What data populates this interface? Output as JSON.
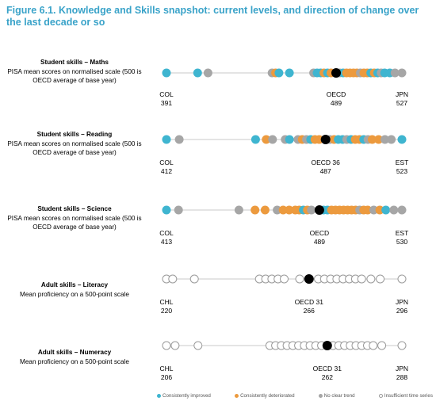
{
  "title": "Figure 6.1. Knowledge and Skills snapshot: current levels, and direction of change over the last decade or so",
  "colors": {
    "improved": "#3fb5d0",
    "deteriorated": "#ec9a3e",
    "no_clear_trend": "#a6a6a6",
    "insufficient": "#ffffff",
    "oecd": "#000000",
    "axis": "#c8c8c8"
  },
  "legend": [
    {
      "key": "improved",
      "label": "Consistently improved"
    },
    {
      "key": "deteriorated",
      "label": "Consistently deteriorated"
    },
    {
      "key": "no_clear_trend",
      "label": "No clear trend"
    },
    {
      "key": "insufficient",
      "label": "Insufficient time series"
    }
  ],
  "chart_data": [
    {
      "type": "scatter",
      "heading": "Student skills – Maths",
      "subtitle": "PISA mean scores on normalised scale (500 is OECD average of base year)",
      "xlim": [
        391,
        527
      ],
      "min_label": {
        "country": "COL",
        "value": "391"
      },
      "max_label": {
        "country": "JPN",
        "value": "527"
      },
      "oecd_label": {
        "country": "OECD",
        "value": "489"
      },
      "oecd": 489,
      "points": [
        {
          "x": 391,
          "s": "improved"
        },
        {
          "x": 409,
          "s": "improved"
        },
        {
          "x": 415,
          "s": "no_clear_trend"
        },
        {
          "x": 452,
          "s": "no_clear_trend"
        },
        {
          "x": 454,
          "s": "deteriorated"
        },
        {
          "x": 456,
          "s": "improved"
        },
        {
          "x": 462,
          "s": "improved"
        },
        {
          "x": 476,
          "s": "no_clear_trend"
        },
        {
          "x": 478,
          "s": "improved"
        },
        {
          "x": 480,
          "s": "improved"
        },
        {
          "x": 482,
          "s": "deteriorated"
        },
        {
          "x": 484,
          "s": "improved"
        },
        {
          "x": 486,
          "s": "deteriorated"
        },
        {
          "x": 491,
          "s": "no_clear_trend"
        },
        {
          "x": 493,
          "s": "improved"
        },
        {
          "x": 495,
          "s": "deteriorated"
        },
        {
          "x": 497,
          "s": "deteriorated"
        },
        {
          "x": 499,
          "s": "deteriorated"
        },
        {
          "x": 501,
          "s": "deteriorated"
        },
        {
          "x": 503,
          "s": "no_clear_trend"
        },
        {
          "x": 505,
          "s": "deteriorated"
        },
        {
          "x": 507,
          "s": "deteriorated"
        },
        {
          "x": 509,
          "s": "improved"
        },
        {
          "x": 511,
          "s": "deteriorated"
        },
        {
          "x": 513,
          "s": "improved"
        },
        {
          "x": 515,
          "s": "no_clear_trend"
        },
        {
          "x": 517,
          "s": "improved"
        },
        {
          "x": 520,
          "s": "improved"
        },
        {
          "x": 523,
          "s": "no_clear_trend"
        },
        {
          "x": 527,
          "s": "no_clear_trend"
        }
      ]
    },
    {
      "type": "scatter",
      "heading": "Student skills – Reading",
      "subtitle": "PISA mean scores on normalised scale (500 is OECD average of base year)",
      "xlim": [
        412,
        523
      ],
      "min_label": {
        "country": "COL",
        "value": "412"
      },
      "max_label": {
        "country": "EST",
        "value": "523"
      },
      "oecd_label": {
        "country": "OECD  36",
        "value": "487"
      },
      "oecd": 487,
      "points": [
        {
          "x": 412,
          "s": "improved"
        },
        {
          "x": 418,
          "s": "no_clear_trend"
        },
        {
          "x": 454,
          "s": "improved"
        },
        {
          "x": 459,
          "s": "deteriorated"
        },
        {
          "x": 462,
          "s": "no_clear_trend"
        },
        {
          "x": 468,
          "s": "no_clear_trend"
        },
        {
          "x": 470,
          "s": "improved"
        },
        {
          "x": 474,
          "s": "no_clear_trend"
        },
        {
          "x": 476,
          "s": "deteriorated"
        },
        {
          "x": 478,
          "s": "no_clear_trend"
        },
        {
          "x": 480,
          "s": "improved"
        },
        {
          "x": 482,
          "s": "deteriorated"
        },
        {
          "x": 484,
          "s": "deteriorated"
        },
        {
          "x": 489,
          "s": "no_clear_trend"
        },
        {
          "x": 491,
          "s": "deteriorated"
        },
        {
          "x": 493,
          "s": "improved"
        },
        {
          "x": 495,
          "s": "improved"
        },
        {
          "x": 497,
          "s": "no_clear_trend"
        },
        {
          "x": 499,
          "s": "improved"
        },
        {
          "x": 501,
          "s": "deteriorated"
        },
        {
          "x": 503,
          "s": "deteriorated"
        },
        {
          "x": 505,
          "s": "improved"
        },
        {
          "x": 507,
          "s": "no_clear_trend"
        },
        {
          "x": 509,
          "s": "deteriorated"
        },
        {
          "x": 512,
          "s": "deteriorated"
        },
        {
          "x": 515,
          "s": "no_clear_trend"
        },
        {
          "x": 518,
          "s": "no_clear_trend"
        },
        {
          "x": 523,
          "s": "improved"
        }
      ]
    },
    {
      "type": "scatter",
      "heading": "Student skills – Science",
      "subtitle": "PISA mean scores on normalised scale (500 is OECD average of base year)",
      "xlim": [
        413,
        530
      ],
      "min_label": {
        "country": "COL",
        "value": "413"
      },
      "max_label": {
        "country": "EST",
        "value": "530"
      },
      "oecd_label": {
        "country": "OECD",
        "value": "489"
      },
      "oecd": 489,
      "points": [
        {
          "x": 413,
          "s": "improved"
        },
        {
          "x": 419,
          "s": "no_clear_trend"
        },
        {
          "x": 449,
          "s": "no_clear_trend"
        },
        {
          "x": 457,
          "s": "deteriorated"
        },
        {
          "x": 462,
          "s": "deteriorated"
        },
        {
          "x": 468,
          "s": "no_clear_trend"
        },
        {
          "x": 471,
          "s": "deteriorated"
        },
        {
          "x": 474,
          "s": "deteriorated"
        },
        {
          "x": 477,
          "s": "deteriorated"
        },
        {
          "x": 479,
          "s": "deteriorated"
        },
        {
          "x": 481,
          "s": "improved"
        },
        {
          "x": 483,
          "s": "deteriorated"
        },
        {
          "x": 485,
          "s": "no_clear_trend"
        },
        {
          "x": 491,
          "s": "improved"
        },
        {
          "x": 493,
          "s": "improved"
        },
        {
          "x": 495,
          "s": "deteriorated"
        },
        {
          "x": 497,
          "s": "deteriorated"
        },
        {
          "x": 499,
          "s": "deteriorated"
        },
        {
          "x": 501,
          "s": "deteriorated"
        },
        {
          "x": 503,
          "s": "deteriorated"
        },
        {
          "x": 505,
          "s": "deteriorated"
        },
        {
          "x": 507,
          "s": "deteriorated"
        },
        {
          "x": 509,
          "s": "no_clear_trend"
        },
        {
          "x": 511,
          "s": "deteriorated"
        },
        {
          "x": 513,
          "s": "deteriorated"
        },
        {
          "x": 516,
          "s": "no_clear_trend"
        },
        {
          "x": 519,
          "s": "deteriorated"
        },
        {
          "x": 522,
          "s": "improved"
        },
        {
          "x": 526,
          "s": "no_clear_trend"
        },
        {
          "x": 530,
          "s": "no_clear_trend"
        }
      ]
    },
    {
      "type": "scatter",
      "heading": "Adult skills – Literacy",
      "subtitle": "Mean proficiency on a 500-point scale",
      "xlim": [
        220,
        296
      ],
      "min_label": {
        "country": "CHL",
        "value": "220"
      },
      "max_label": {
        "country": "JPN",
        "value": "296"
      },
      "oecd_label": {
        "country": "OECD  31",
        "value": "266"
      },
      "oecd": 266,
      "points": [
        {
          "x": 220,
          "s": "insufficient"
        },
        {
          "x": 222,
          "s": "insufficient"
        },
        {
          "x": 229,
          "s": "insufficient"
        },
        {
          "x": 250,
          "s": "insufficient"
        },
        {
          "x": 252,
          "s": "insufficient"
        },
        {
          "x": 254,
          "s": "insufficient"
        },
        {
          "x": 256,
          "s": "insufficient"
        },
        {
          "x": 258,
          "s": "insufficient"
        },
        {
          "x": 263,
          "s": "insufficient"
        },
        {
          "x": 269,
          "s": "insufficient"
        },
        {
          "x": 271,
          "s": "insufficient"
        },
        {
          "x": 273,
          "s": "insufficient"
        },
        {
          "x": 275,
          "s": "insufficient"
        },
        {
          "x": 277,
          "s": "insufficient"
        },
        {
          "x": 279,
          "s": "insufficient"
        },
        {
          "x": 281,
          "s": "insufficient"
        },
        {
          "x": 283,
          "s": "insufficient"
        },
        {
          "x": 286,
          "s": "insufficient"
        },
        {
          "x": 289,
          "s": "insufficient"
        },
        {
          "x": 296,
          "s": "insufficient"
        }
      ]
    },
    {
      "type": "scatter",
      "heading": "Adult skills – Numeracy",
      "subtitle": "Mean proficiency on a 500-point scale",
      "xlim": [
        206,
        288
      ],
      "min_label": {
        "country": "CHL",
        "value": "206"
      },
      "max_label": {
        "country": "JPN",
        "value": "288"
      },
      "oecd_label": {
        "country": "OECD  31",
        "value": "262"
      },
      "oecd": 262,
      "points": [
        {
          "x": 206,
          "s": "insufficient"
        },
        {
          "x": 209,
          "s": "insufficient"
        },
        {
          "x": 217,
          "s": "insufficient"
        },
        {
          "x": 242,
          "s": "insufficient"
        },
        {
          "x": 244,
          "s": "insufficient"
        },
        {
          "x": 246,
          "s": "insufficient"
        },
        {
          "x": 248,
          "s": "insufficient"
        },
        {
          "x": 250,
          "s": "insufficient"
        },
        {
          "x": 252,
          "s": "insufficient"
        },
        {
          "x": 254,
          "s": "insufficient"
        },
        {
          "x": 256,
          "s": "insufficient"
        },
        {
          "x": 258,
          "s": "insufficient"
        },
        {
          "x": 260,
          "s": "insufficient"
        },
        {
          "x": 264,
          "s": "insufficient"
        },
        {
          "x": 266,
          "s": "insufficient"
        },
        {
          "x": 268,
          "s": "insufficient"
        },
        {
          "x": 270,
          "s": "insufficient"
        },
        {
          "x": 272,
          "s": "insufficient"
        },
        {
          "x": 274,
          "s": "insufficient"
        },
        {
          "x": 276,
          "s": "insufficient"
        },
        {
          "x": 278,
          "s": "insufficient"
        },
        {
          "x": 281,
          "s": "insufficient"
        },
        {
          "x": 288,
          "s": "insufficient"
        }
      ]
    }
  ]
}
